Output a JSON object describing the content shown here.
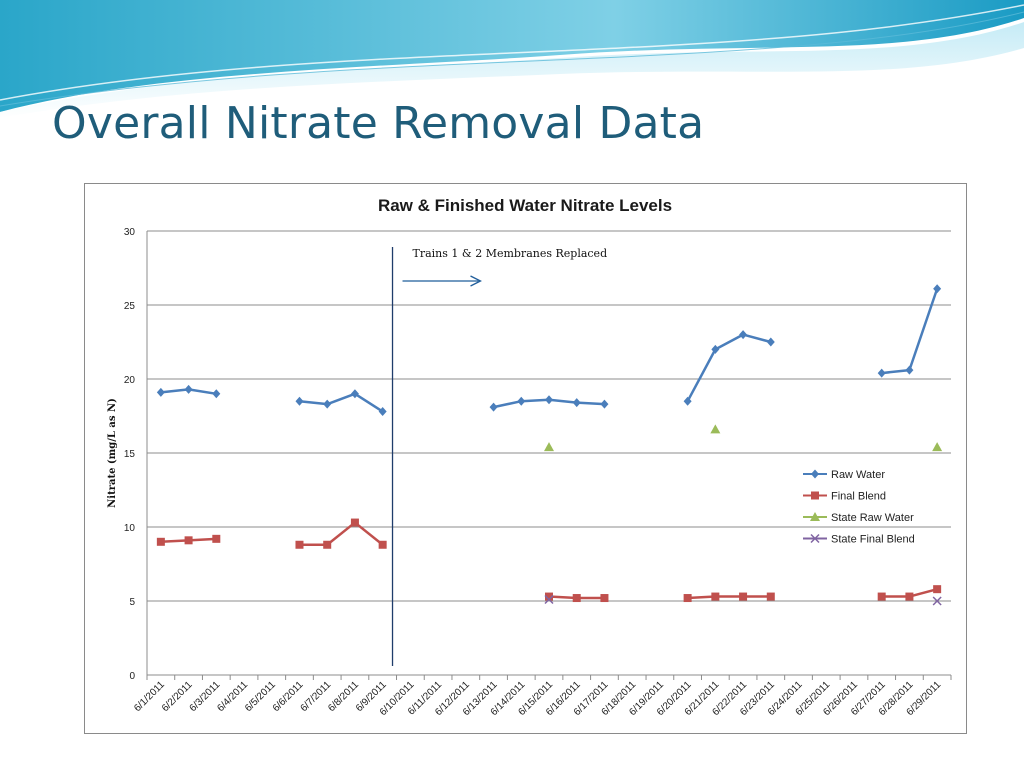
{
  "slide": {
    "title": "Overall Nitrate Removal Data"
  },
  "chart_data": {
    "type": "line",
    "title": "Raw & Finished Water Nitrate Levels",
    "xlabel": "",
    "ylabel": "Nitrate (mg/L as N)",
    "ylim": [
      0,
      30
    ],
    "yticks": [
      0,
      5,
      10,
      15,
      20,
      25,
      30
    ],
    "grid": "horizontal",
    "legend_position": "right",
    "categories": [
      "6/1/2011",
      "6/2/2011",
      "6/3/2011",
      "6/4/2011",
      "6/5/2011",
      "6/6/2011",
      "6/7/2011",
      "6/8/2011",
      "6/9/2011",
      "6/10/2011",
      "6/11/2011",
      "6/12/2011",
      "6/13/2011",
      "6/14/2011",
      "6/15/2011",
      "6/16/2011",
      "6/17/2011",
      "6/18/2011",
      "6/19/2011",
      "6/20/2011",
      "6/21/2011",
      "6/22/2011",
      "6/23/2011",
      "6/24/2011",
      "6/25/2011",
      "6/26/2011",
      "6/27/2011",
      "6/28/2011",
      "6/29/2011"
    ],
    "series": [
      {
        "name": "Raw Water",
        "color": "#4a7ebb",
        "marker": "diamond",
        "line": true,
        "values": [
          19.1,
          19.3,
          19.0,
          null,
          null,
          18.5,
          18.3,
          19.0,
          17.8,
          null,
          null,
          null,
          18.1,
          18.5,
          18.6,
          18.4,
          18.3,
          null,
          null,
          18.5,
          22.0,
          23.0,
          22.5,
          null,
          null,
          null,
          20.4,
          20.6,
          26.1
        ]
      },
      {
        "name": "Final Blend",
        "color": "#c0504d",
        "marker": "square",
        "line": true,
        "values": [
          9.0,
          9.1,
          9.2,
          null,
          null,
          8.8,
          8.8,
          10.3,
          8.8,
          null,
          null,
          null,
          null,
          null,
          5.3,
          5.2,
          5.2,
          null,
          null,
          5.2,
          5.3,
          5.3,
          5.3,
          null,
          null,
          null,
          5.3,
          5.3,
          5.8
        ]
      },
      {
        "name": "State Raw Water",
        "color": "#9bbb59",
        "marker": "triangle",
        "line": false,
        "values": [
          null,
          null,
          null,
          null,
          null,
          null,
          null,
          null,
          null,
          null,
          null,
          null,
          null,
          null,
          15.4,
          null,
          null,
          null,
          null,
          null,
          16.6,
          null,
          null,
          null,
          null,
          null,
          null,
          null,
          15.4
        ]
      },
      {
        "name": "State Final Blend",
        "color": "#8064a2",
        "marker": "x",
        "line": false,
        "values": [
          null,
          null,
          null,
          null,
          null,
          null,
          null,
          null,
          null,
          null,
          null,
          null,
          null,
          null,
          5.1,
          null,
          null,
          null,
          null,
          null,
          null,
          null,
          null,
          null,
          null,
          null,
          null,
          null,
          5.0
        ]
      }
    ],
    "annotation": {
      "text": "Trains 1 & 2 Membranes Replaced",
      "at_category": "6/10/2011"
    }
  }
}
